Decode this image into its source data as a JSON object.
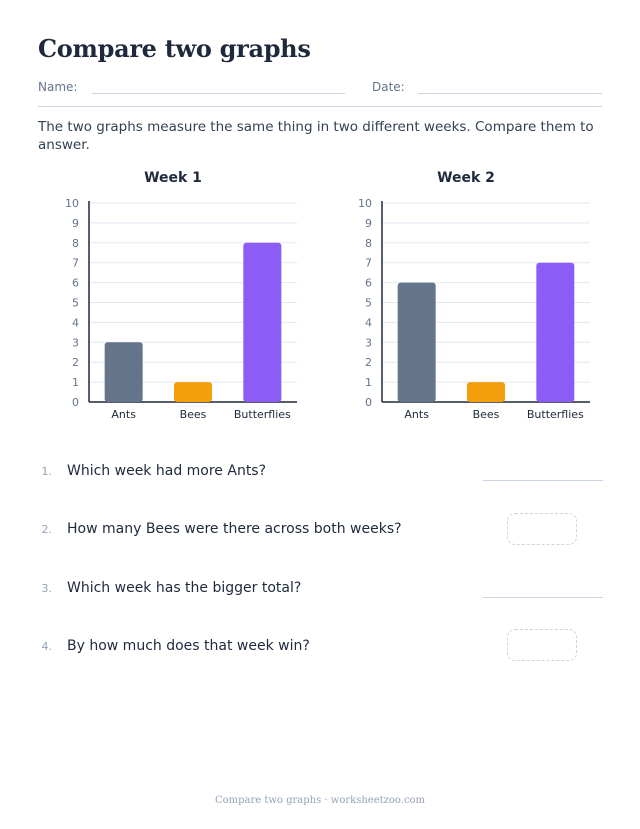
{
  "title": "Compare two graphs",
  "name_label": "Name:",
  "date_label": "Date:",
  "instructions": "The two graphs measure the same thing in two different weeks. Compare them to answer.",
  "chart_data": [
    {
      "type": "bar",
      "title": "Week 1",
      "categories": [
        "Ants",
        "Bees",
        "Butterflies"
      ],
      "values": [
        3,
        1,
        8
      ],
      "colors": [
        "#64748b",
        "#f59e0b",
        "#8b5cf6"
      ],
      "ylim": [
        0,
        10
      ],
      "yticks": [
        "0",
        "1",
        "2",
        "3",
        "4",
        "5",
        "6",
        "7",
        "8",
        "9",
        "10"
      ],
      "grid": true
    },
    {
      "type": "bar",
      "title": "Week 2",
      "categories": [
        "Ants",
        "Bees",
        "Butterflies"
      ],
      "values": [
        6,
        1,
        7
      ],
      "colors": [
        "#64748b",
        "#f59e0b",
        "#8b5cf6"
      ],
      "ylim": [
        0,
        10
      ],
      "yticks": [
        "0",
        "1",
        "2",
        "3",
        "4",
        "5",
        "6",
        "7",
        "8",
        "9",
        "10"
      ],
      "grid": true
    }
  ],
  "questions": [
    {
      "num": "1.",
      "text": "Which week had more Ants?",
      "answer": "line"
    },
    {
      "num": "2.",
      "text": "How many Bees were there across both weeks?",
      "answer": "box"
    },
    {
      "num": "3.",
      "text": "Which week has the bigger total?",
      "answer": "line"
    },
    {
      "num": "4.",
      "text": "By how much does that week win?",
      "answer": "box"
    }
  ],
  "footer": "Compare two graphs · worksheetzoo.com"
}
